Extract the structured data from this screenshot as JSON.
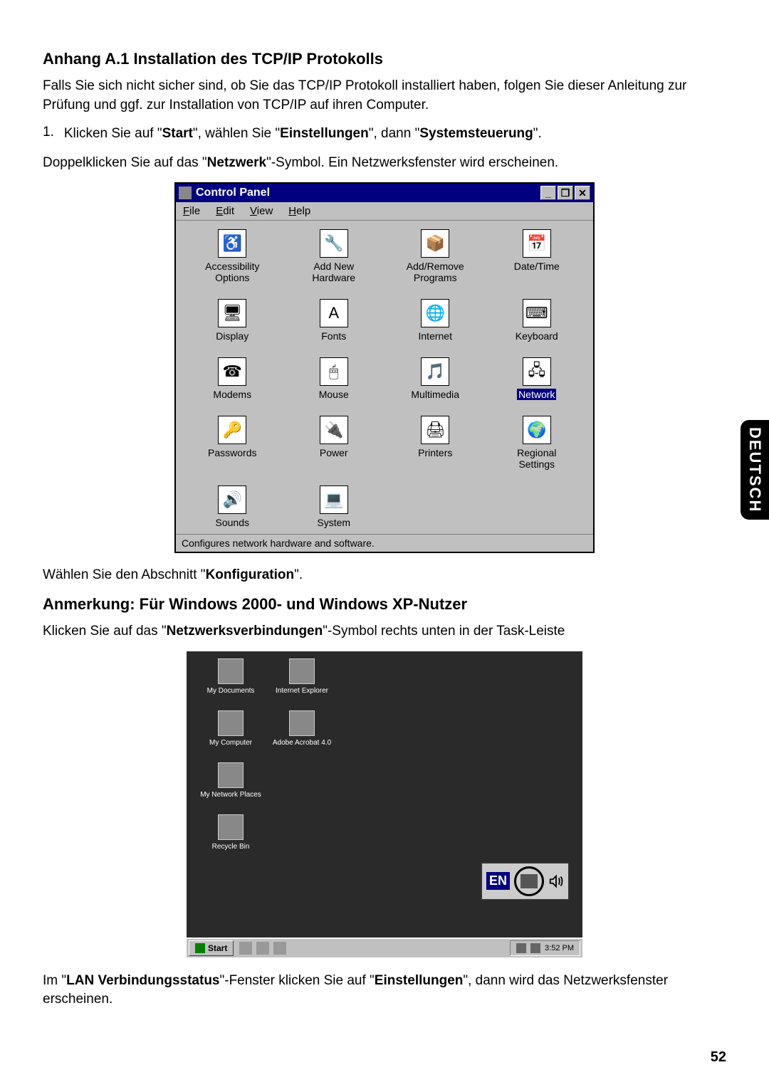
{
  "heading1": "Anhang A.1 Installation des TCP/IP Protokolls",
  "para1_a": "Falls Sie sich nicht sicher sind, ob Sie das TCP/IP Protokoll installiert haben, folgen Sie dieser Anleitung zur Prüfung und ggf. zur Installation von TCP/IP auf ihren Computer.",
  "step1_num": "1.",
  "step1_a": "Klicken Sie auf \"",
  "step1_b": "Start",
  "step1_c": "\", wählen Sie \"",
  "step1_d": "Einstellungen",
  "step1_e": "\", dann \"",
  "step1_f": "Systemsteuerung",
  "step1_g": "\".",
  "para2_a": "Doppelklicken Sie auf das \"",
  "para2_b": "Netzwerk",
  "para2_c": "\"-Symbol. Ein Netzwerksfenster wird erscheinen.",
  "cp": {
    "title": "Control Panel",
    "menus": {
      "file": "File",
      "edit": "Edit",
      "view": "View",
      "help": "Help"
    },
    "items": [
      {
        "label": "Accessibility Options",
        "emoji": "♿"
      },
      {
        "label": "Add New Hardware",
        "emoji": "🔧"
      },
      {
        "label": "Add/Remove Programs",
        "emoji": "📦"
      },
      {
        "label": "Date/Time",
        "emoji": "📅"
      },
      {
        "label": "Display",
        "emoji": "🖥"
      },
      {
        "label": "Fonts",
        "emoji": "A"
      },
      {
        "label": "Internet",
        "emoji": "🌐"
      },
      {
        "label": "Keyboard",
        "emoji": "⌨"
      },
      {
        "label": "Modems",
        "emoji": "☎"
      },
      {
        "label": "Mouse",
        "emoji": "🖱"
      },
      {
        "label": "Multimedia",
        "emoji": "🎵"
      },
      {
        "label": "Network",
        "emoji": "🖧",
        "selected": true
      },
      {
        "label": "Passwords",
        "emoji": "🔑"
      },
      {
        "label": "Power",
        "emoji": "🔌"
      },
      {
        "label": "Printers",
        "emoji": "🖨"
      },
      {
        "label": "Regional Settings",
        "emoji": "🌍"
      },
      {
        "label": "Sounds",
        "emoji": "🔊"
      },
      {
        "label": "System",
        "emoji": "💻"
      }
    ],
    "status": "Configures network hardware and software."
  },
  "para3_a": "Wählen Sie den Abschnitt \"",
  "para3_b": "Konfiguration",
  "para3_c": "\".",
  "heading2": "Anmerkung: Für Windows 2000- und Windows XP-Nutzer",
  "para4_a": "Klicken Sie auf das \"",
  "para4_b": "Netzwerksverbindungen",
  "para4_c": "\"-Symbol rechts unten in der Task-Leiste",
  "desktop": {
    "icons": [
      {
        "label": "My Documents"
      },
      {
        "label": "Internet Explorer"
      },
      {
        "label": "My Computer"
      },
      {
        "label": "Adobe Acrobat 4.0"
      },
      {
        "label": "My Network Places"
      },
      {
        "label": ""
      },
      {
        "label": "Recycle Bin"
      }
    ],
    "start": "Start",
    "lang": "EN",
    "time": "3:52 PM"
  },
  "para5_a": "Im \"",
  "para5_b": "LAN Verbindungsstatus",
  "para5_c": "\"-Fenster klicken Sie auf \"",
  "para5_d": "Einstellungen",
  "para5_e": "\", dann wird das Netzwerksfenster erscheinen.",
  "side_tab": "DEUTSCH",
  "page_number": "52"
}
